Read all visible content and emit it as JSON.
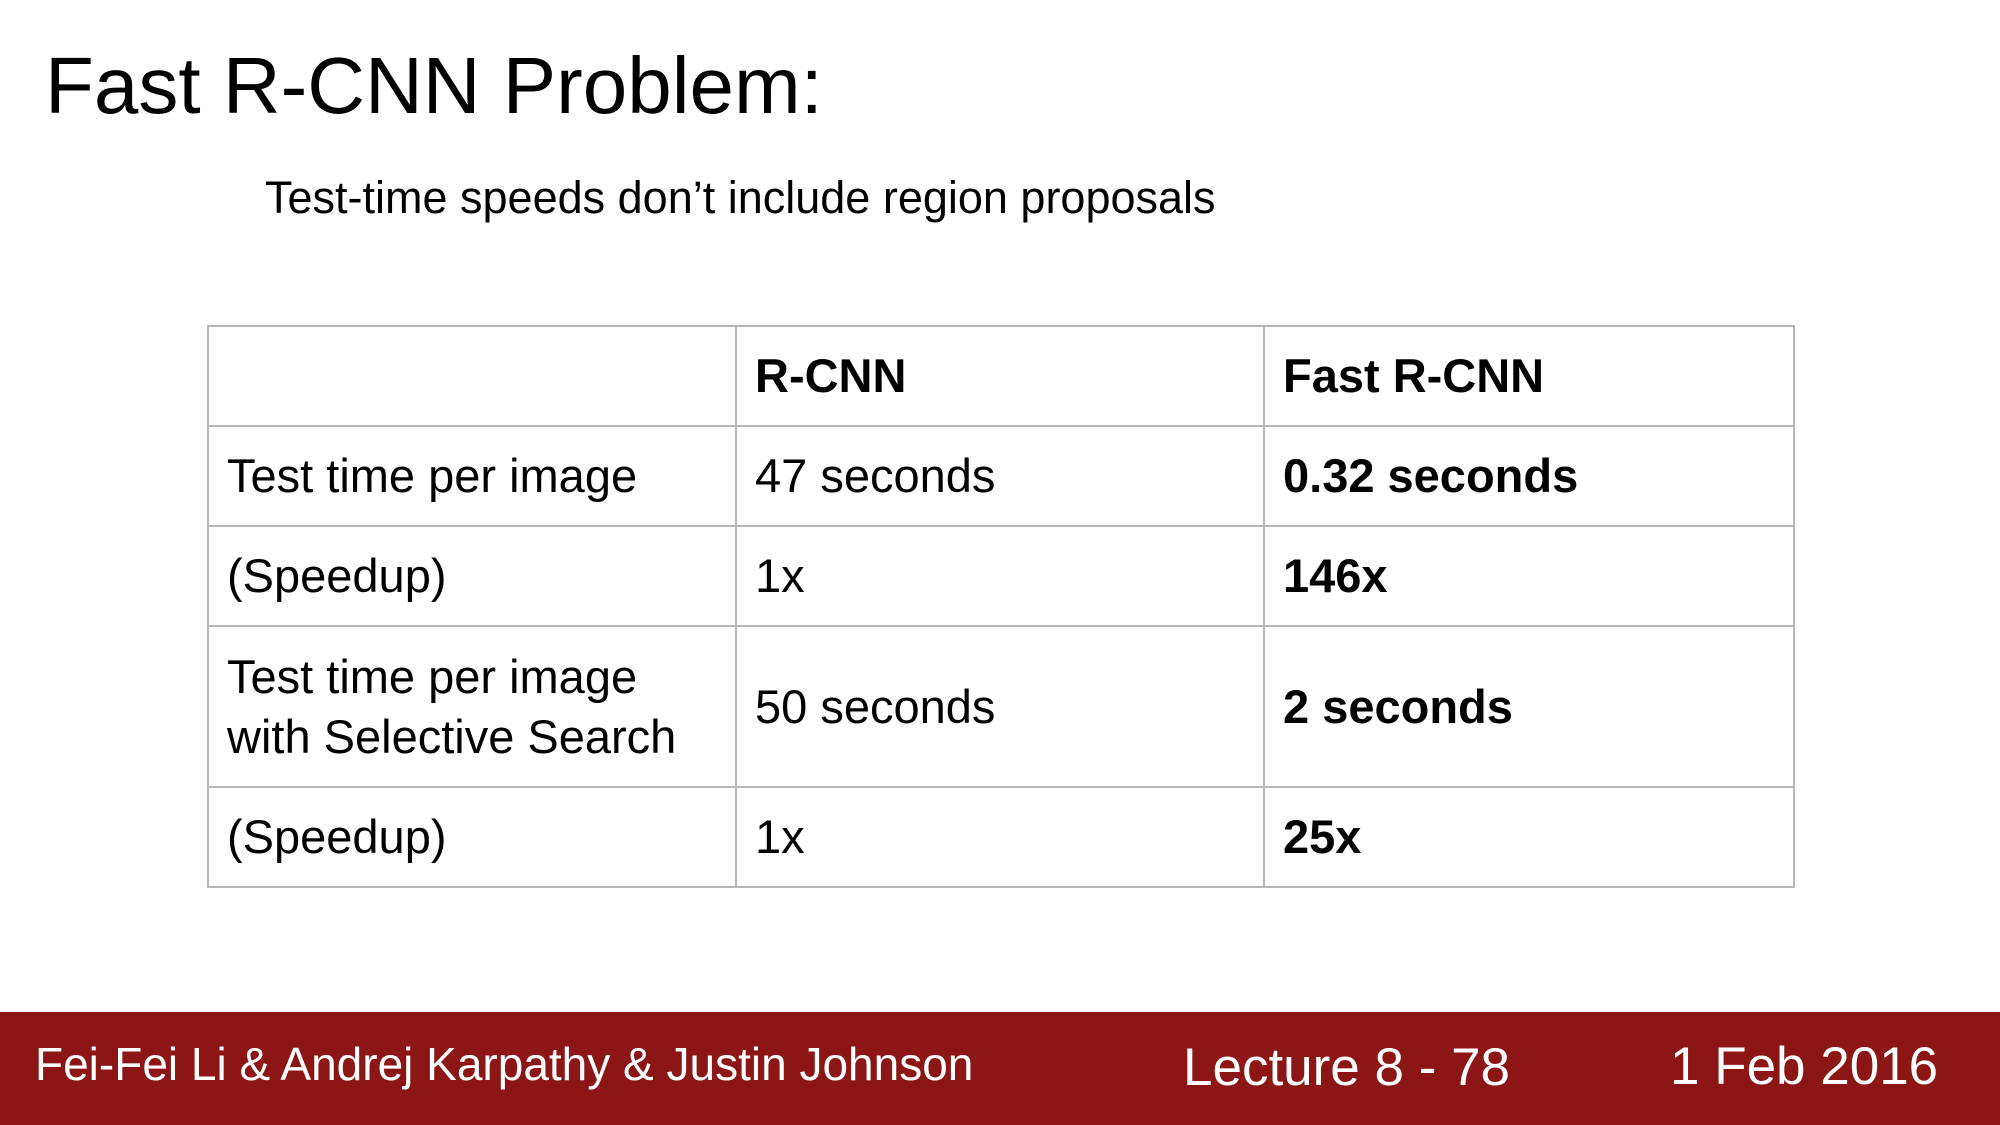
{
  "slide": {
    "title": "Fast R-CNN Problem:",
    "subtitle": "Test-time speeds don’t include region proposals"
  },
  "table": {
    "headers": [
      "",
      "R-CNN",
      "Fast R-CNN"
    ],
    "rows": [
      {
        "label": "Test time per image",
        "rcnn": "47 seconds",
        "fast_rcnn": "0.32 seconds"
      },
      {
        "label": "(Speedup)",
        "rcnn": "1x",
        "fast_rcnn": "146x"
      },
      {
        "label": "Test time per image with Selective Search",
        "rcnn": "50 seconds",
        "fast_rcnn": "2 seconds"
      },
      {
        "label": "(Speedup)",
        "rcnn": "1x",
        "fast_rcnn": "25x"
      }
    ]
  },
  "footer": {
    "authors": "Fei-Fei Li & Andrej Karpathy & Justin Johnson",
    "lecture": "Lecture 8 - 78",
    "date": "1 Feb 2016",
    "background_color": "#8c1515"
  }
}
